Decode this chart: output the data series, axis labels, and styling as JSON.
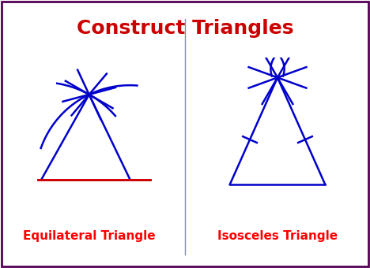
{
  "title": "Construct Triangles",
  "title_color": "#cc0000",
  "title_fontsize": 18,
  "label_left": "Equilateral Triangle",
  "label_right": "Isosceles Triangle",
  "label_color": "#ff0000",
  "label_fontsize": 11,
  "line_color": "#0000cc",
  "base_color": "#cc0000",
  "border_color": "#550055",
  "divider_color": "#8888bb",
  "bg_color": "#ffffff",
  "lw": 1.8
}
